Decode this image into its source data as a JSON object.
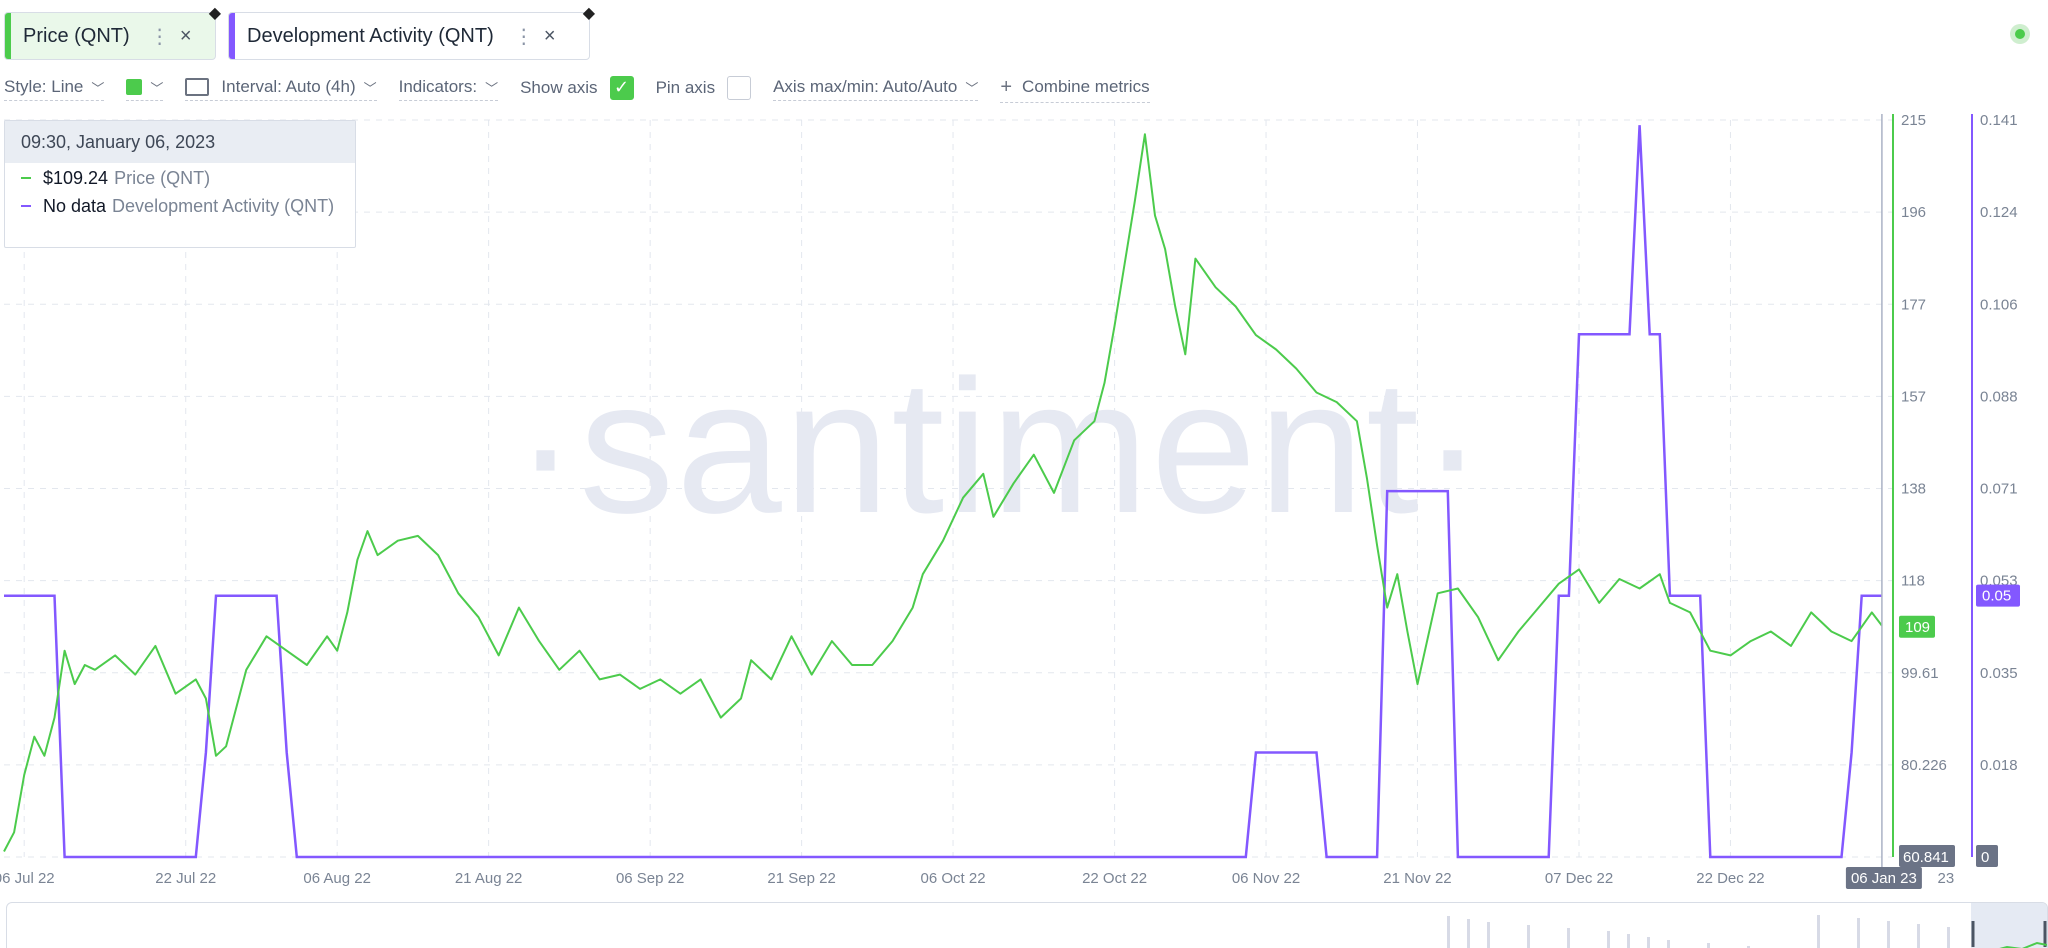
{
  "tabs": [
    {
      "label": "Price (QNT)",
      "color": "#4ccb4c"
    },
    {
      "label": "Development Activity (QNT)",
      "color": "#8358ff"
    }
  ],
  "settings": {
    "style_label": "Style: Line",
    "interval_label": "Interval: Auto (4h)",
    "indicators_label": "Indicators:",
    "show_axis_label": "Show axis",
    "show_axis_checked": true,
    "pin_axis_label": "Pin axis",
    "pin_axis_checked": false,
    "axis_minmax_label": "Axis max/min: Auto/Auto",
    "combine_label": "Combine metrics"
  },
  "tooltip": {
    "date": "09:30, January 06, 2023",
    "rows": [
      {
        "value": "$109.24",
        "name": "Price (QNT)",
        "color": "#4ccb4c"
      },
      {
        "value": "No data",
        "name": "Development Activity (QNT)",
        "color": "#8358ff"
      }
    ]
  },
  "watermark": "·santiment·",
  "chart_data": {
    "type": "line",
    "x_range": [
      "2022-07-04",
      "2023-01-07"
    ],
    "x_tick_labels": [
      "06 Jul 22",
      "22 Jul 22",
      "06 Aug 22",
      "21 Aug 22",
      "06 Sep 22",
      "21 Sep 22",
      "06 Oct 22",
      "22 Oct 22",
      "06 Nov 22",
      "21 Nov 22",
      "07 Dec 22",
      "22 Dec 22"
    ],
    "x_tick_dates": [
      "2022-07-06",
      "2022-07-22",
      "2022-08-06",
      "2022-08-21",
      "2022-09-06",
      "2022-09-21",
      "2022-10-06",
      "2022-10-22",
      "2022-11-06",
      "2022-11-21",
      "2022-12-07",
      "2022-12-22"
    ],
    "highlighted_x_label": "06 Jan 23",
    "trailing_x_label": "23",
    "crosshair_date": "2023-01-06",
    "series": [
      {
        "name": "Price (QNT)",
        "color": "#4ccb4c",
        "axis": "left",
        "axis_ticks": [
          "215",
          "196",
          "177",
          "157",
          "138",
          "118",
          "99.61",
          "80.226",
          "60.841"
        ],
        "axis_min": 60.841,
        "axis_max": 215,
        "current_value_label": "109",
        "current_value": 109,
        "points": [
          [
            "2022-07-04",
            62
          ],
          [
            "2022-07-05",
            66
          ],
          [
            "2022-07-06",
            78
          ],
          [
            "2022-07-07",
            86
          ],
          [
            "2022-07-08",
            82
          ],
          [
            "2022-07-09",
            90
          ],
          [
            "2022-07-10",
            104
          ],
          [
            "2022-07-11",
            97
          ],
          [
            "2022-07-12",
            101
          ],
          [
            "2022-07-13",
            100
          ],
          [
            "2022-07-15",
            103
          ],
          [
            "2022-07-17",
            99
          ],
          [
            "2022-07-19",
            105
          ],
          [
            "2022-07-21",
            95
          ],
          [
            "2022-07-23",
            98
          ],
          [
            "2022-07-24",
            94
          ],
          [
            "2022-07-25",
            82
          ],
          [
            "2022-07-26",
            84
          ],
          [
            "2022-07-28",
            100
          ],
          [
            "2022-07-30",
            107
          ],
          [
            "2022-08-01",
            104
          ],
          [
            "2022-08-03",
            101
          ],
          [
            "2022-08-05",
            107
          ],
          [
            "2022-08-06",
            104
          ],
          [
            "2022-08-07",
            112
          ],
          [
            "2022-08-08",
            123
          ],
          [
            "2022-08-09",
            129
          ],
          [
            "2022-08-10",
            124
          ],
          [
            "2022-08-12",
            127
          ],
          [
            "2022-08-14",
            128
          ],
          [
            "2022-08-16",
            124
          ],
          [
            "2022-08-18",
            116
          ],
          [
            "2022-08-20",
            111
          ],
          [
            "2022-08-22",
            103
          ],
          [
            "2022-08-24",
            113
          ],
          [
            "2022-08-26",
            106
          ],
          [
            "2022-08-28",
            100
          ],
          [
            "2022-08-30",
            104
          ],
          [
            "2022-09-01",
            98
          ],
          [
            "2022-09-03",
            99
          ],
          [
            "2022-09-05",
            96
          ],
          [
            "2022-09-07",
            98
          ],
          [
            "2022-09-09",
            95
          ],
          [
            "2022-09-11",
            98
          ],
          [
            "2022-09-13",
            90
          ],
          [
            "2022-09-15",
            94
          ],
          [
            "2022-09-16",
            102
          ],
          [
            "2022-09-18",
            98
          ],
          [
            "2022-09-20",
            107
          ],
          [
            "2022-09-22",
            99
          ],
          [
            "2022-09-24",
            106
          ],
          [
            "2022-09-26",
            101
          ],
          [
            "2022-09-28",
            101
          ],
          [
            "2022-09-30",
            106
          ],
          [
            "2022-10-02",
            113
          ],
          [
            "2022-10-03",
            120
          ],
          [
            "2022-10-05",
            127
          ],
          [
            "2022-10-07",
            136
          ],
          [
            "2022-10-09",
            141
          ],
          [
            "2022-10-10",
            132
          ],
          [
            "2022-10-12",
            139
          ],
          [
            "2022-10-14",
            145
          ],
          [
            "2022-10-16",
            137
          ],
          [
            "2022-10-18",
            148
          ],
          [
            "2022-10-20",
            152
          ],
          [
            "2022-10-21",
            160
          ],
          [
            "2022-10-22",
            172
          ],
          [
            "2022-10-23",
            185
          ],
          [
            "2022-10-24",
            198
          ],
          [
            "2022-10-25",
            212
          ],
          [
            "2022-10-26",
            195
          ],
          [
            "2022-10-27",
            188
          ],
          [
            "2022-10-28",
            176
          ],
          [
            "2022-10-29",
            166
          ],
          [
            "2022-10-30",
            186
          ],
          [
            "2022-11-01",
            180
          ],
          [
            "2022-11-03",
            176
          ],
          [
            "2022-11-05",
            170
          ],
          [
            "2022-11-07",
            167
          ],
          [
            "2022-11-09",
            163
          ],
          [
            "2022-11-11",
            158
          ],
          [
            "2022-11-13",
            156
          ],
          [
            "2022-11-15",
            152
          ],
          [
            "2022-11-16",
            140
          ],
          [
            "2022-11-17",
            126
          ],
          [
            "2022-11-18",
            113
          ],
          [
            "2022-11-19",
            120
          ],
          [
            "2022-11-20",
            108
          ],
          [
            "2022-11-21",
            97
          ],
          [
            "2022-11-23",
            116
          ],
          [
            "2022-11-25",
            117
          ],
          [
            "2022-11-27",
            111
          ],
          [
            "2022-11-29",
            102
          ],
          [
            "2022-12-01",
            108
          ],
          [
            "2022-12-03",
            113
          ],
          [
            "2022-12-05",
            118
          ],
          [
            "2022-12-07",
            121
          ],
          [
            "2022-12-09",
            114
          ],
          [
            "2022-12-11",
            119
          ],
          [
            "2022-12-13",
            117
          ],
          [
            "2022-12-15",
            120
          ],
          [
            "2022-12-16",
            114
          ],
          [
            "2022-12-18",
            112
          ],
          [
            "2022-12-20",
            104
          ],
          [
            "2022-12-22",
            103
          ],
          [
            "2022-12-24",
            106
          ],
          [
            "2022-12-26",
            108
          ],
          [
            "2022-12-28",
            105
          ],
          [
            "2022-12-30",
            112
          ],
          [
            "2023-01-01",
            108
          ],
          [
            "2023-01-03",
            106
          ],
          [
            "2023-01-04",
            109
          ],
          [
            "2023-01-05",
            112
          ],
          [
            "2023-01-06",
            109.24
          ]
        ]
      },
      {
        "name": "Development Activity (QNT)",
        "color": "#8358ff",
        "axis": "right",
        "axis_ticks": [
          "0.141",
          "0.124",
          "0.106",
          "0.088",
          "0.071",
          "0.053",
          "0.035",
          "0.018",
          "0"
        ],
        "axis_min": 0,
        "axis_max": 0.141,
        "current_value_label": "0.05",
        "current_value": 0.05,
        "points": [
          [
            "2022-07-04",
            0.05
          ],
          [
            "2022-07-09",
            0.05
          ],
          [
            "2022-07-10",
            0
          ],
          [
            "2022-07-23",
            0
          ],
          [
            "2022-07-24",
            0.02
          ],
          [
            "2022-07-25",
            0.05
          ],
          [
            "2022-07-31",
            0.05
          ],
          [
            "2022-08-01",
            0.02
          ],
          [
            "2022-08-02",
            0
          ],
          [
            "2022-11-04",
            0
          ],
          [
            "2022-11-05",
            0.02
          ],
          [
            "2022-11-11",
            0.02
          ],
          [
            "2022-11-12",
            0
          ],
          [
            "2022-11-17",
            0
          ],
          [
            "2022-11-18",
            0.07
          ],
          [
            "2022-11-24",
            0.07
          ],
          [
            "2022-11-25",
            0
          ],
          [
            "2022-12-04",
            0
          ],
          [
            "2022-12-05",
            0.05
          ],
          [
            "2022-12-06",
            0.05
          ],
          [
            "2022-12-07",
            0.1
          ],
          [
            "2022-12-12",
            0.1
          ],
          [
            "2022-12-13",
            0.14
          ],
          [
            "2022-12-14",
            0.1
          ],
          [
            "2022-12-15",
            0.1
          ],
          [
            "2022-12-16",
            0.05
          ],
          [
            "2022-12-19",
            0.05
          ],
          [
            "2022-12-20",
            0
          ],
          [
            "2023-01-02",
            0
          ],
          [
            "2023-01-03",
            0.02
          ],
          [
            "2023-01-04",
            0.05
          ],
          [
            "2023-01-06",
            0.05
          ]
        ]
      }
    ],
    "grid": true
  }
}
